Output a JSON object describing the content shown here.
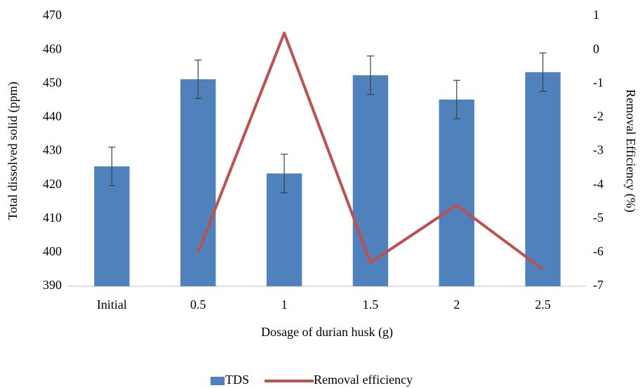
{
  "chart_data": {
    "type": "bar-line",
    "x_label": "Dosage of durian husk (g)",
    "y_label": "Total dissolved solid (ppm)",
    "y2_label": "Removal Efficiency (%)",
    "categories": [
      "Initial",
      "0.5",
      "1",
      "1.5",
      "2",
      "2.5"
    ],
    "series": [
      {
        "name": "TDS",
        "type": "bar",
        "color": "#4f81bd",
        "values": [
          425.5,
          451.3,
          423.4,
          452.5,
          445.3,
          453.4
        ],
        "errors": [
          5.7,
          5.7,
          5.7,
          5.7,
          5.7,
          5.7
        ]
      },
      {
        "name": "Removal efficiency",
        "type": "line",
        "axis": "y2",
        "color": "#c0504d",
        "values": [
          null,
          -6.0,
          0.5,
          -6.3,
          -4.6,
          -6.5
        ]
      }
    ],
    "ylim": [
      390,
      470
    ],
    "yticks": [
      390,
      400,
      410,
      420,
      430,
      440,
      450,
      460,
      470
    ],
    "y2lim": [
      -7,
      1
    ],
    "y2ticks": [
      -7,
      -6,
      -5,
      -4,
      -3,
      -2,
      -1,
      0,
      1
    ],
    "grid": false,
    "legend": "bottom"
  }
}
